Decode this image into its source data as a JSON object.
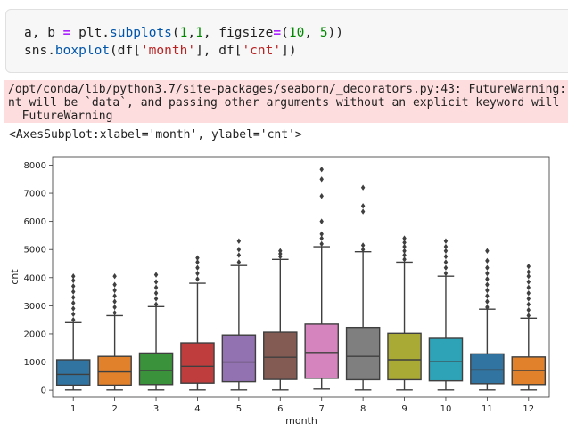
{
  "code_cell": {
    "line1": {
      "a": "a, b ",
      "eq": "=",
      "b": " plt.",
      "fn": "subplots",
      "c": "(",
      "n1": "1",
      "d": ",",
      "n2": "1",
      "e": ", figsize",
      "eq2": "=",
      "f": "(",
      "n3": "10",
      "g": ", ",
      "n4": "5",
      "h": "))"
    },
    "line2": {
      "a": "sns.",
      "fn": "boxplot",
      "b": "(df[",
      "s1": "'month'",
      "c": "], df[",
      "s2": "'cnt'",
      "d": "])"
    }
  },
  "stderr": {
    "line1": "/opt/conda/lib/python3.7/site-packages/seaborn/_decorators.py:43: FutureWarning:",
    "line2": "nt will be `data`, and passing other arguments without an explicit keyword will",
    "line3": "  FutureWarning"
  },
  "output_text": "<AxesSubplot:xlabel='month', ylabel='cnt'>",
  "colors": {
    "boxes": [
      "#3274a1",
      "#e1812c",
      "#3a923a",
      "#c03d3e",
      "#9372b2",
      "#845b53",
      "#d684bd",
      "#7f7f7f",
      "#a9aa35",
      "#2ea2b6",
      "#3274a1",
      "#e1812c"
    ]
  },
  "chart_data": {
    "type": "box",
    "title": "",
    "xlabel": "month",
    "ylabel": "cnt",
    "categories": [
      "1",
      "2",
      "3",
      "4",
      "5",
      "6",
      "7",
      "8",
      "9",
      "10",
      "11",
      "12"
    ],
    "ylim": [
      -250,
      8300
    ],
    "yticks": [
      0,
      1000,
      2000,
      3000,
      4000,
      5000,
      6000,
      7000,
      8000
    ],
    "boxes": [
      {
        "min": 10,
        "q1": 180,
        "median": 560,
        "q3": 1080,
        "max": 2400,
        "outliers": [
          2500,
          2700,
          2900,
          3100,
          3300,
          3500,
          3700,
          3900,
          4050
        ]
      },
      {
        "min": 10,
        "q1": 180,
        "median": 650,
        "q3": 1200,
        "max": 2650,
        "outliers": [
          2750,
          2950,
          3150,
          3350,
          3550,
          3750,
          4050
        ]
      },
      {
        "min": 10,
        "q1": 200,
        "median": 700,
        "q3": 1320,
        "max": 2970,
        "outliers": [
          3050,
          3250,
          3450,
          3650,
          3850,
          4100
        ]
      },
      {
        "min": 10,
        "q1": 250,
        "median": 850,
        "q3": 1680,
        "max": 3800,
        "outliers": [
          3950,
          4150,
          4350,
          4550,
          4700
        ]
      },
      {
        "min": 10,
        "q1": 300,
        "median": 1000,
        "q3": 1960,
        "max": 4430,
        "outliers": [
          4550,
          4800,
          5000,
          5300
        ]
      },
      {
        "min": 10,
        "q1": 380,
        "median": 1170,
        "q3": 2060,
        "max": 4650,
        "outliers": [
          4750,
          4850,
          4950
        ]
      },
      {
        "min": 40,
        "q1": 420,
        "median": 1340,
        "q3": 2350,
        "max": 5100,
        "outliers": [
          5200,
          5400,
          5550,
          6000,
          6900,
          7500,
          7850
        ]
      },
      {
        "min": 10,
        "q1": 370,
        "median": 1200,
        "q3": 2230,
        "max": 4920,
        "outliers": [
          5000,
          5150,
          6350,
          6550,
          7200
        ]
      },
      {
        "min": 10,
        "q1": 370,
        "median": 1080,
        "q3": 2020,
        "max": 4550,
        "outliers": [
          4650,
          4800,
          4950,
          5100,
          5250,
          5400
        ]
      },
      {
        "min": 10,
        "q1": 330,
        "median": 1010,
        "q3": 1840,
        "max": 4050,
        "outliers": [
          4150,
          4350,
          4550,
          4750,
          4950,
          5100,
          5300
        ]
      },
      {
        "min": 10,
        "q1": 230,
        "median": 720,
        "q3": 1290,
        "max": 2880,
        "outliers": [
          2950,
          3150,
          3350,
          3550,
          3750,
          3950,
          4150,
          4350,
          4600,
          4950
        ]
      },
      {
        "min": 10,
        "q1": 200,
        "median": 700,
        "q3": 1180,
        "max": 2560,
        "outliers": [
          2650,
          2850,
          3050,
          3250,
          3450,
          3650,
          3850,
          4050,
          4200,
          4400
        ]
      }
    ]
  }
}
